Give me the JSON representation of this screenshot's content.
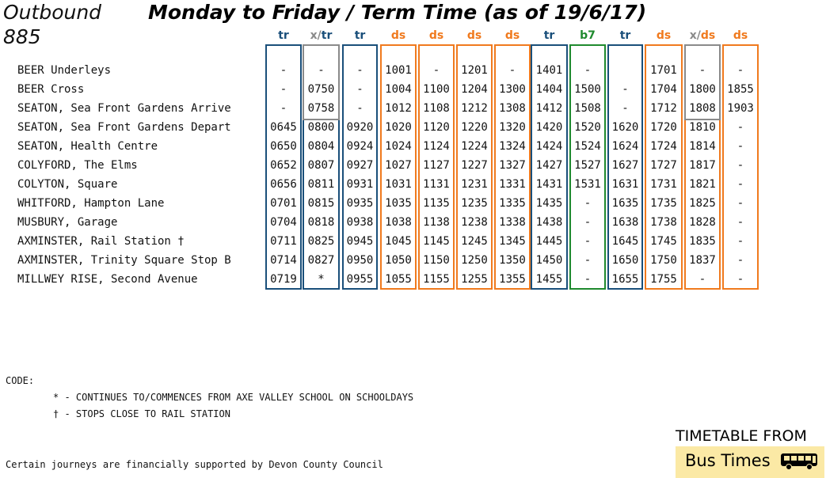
{
  "header": {
    "direction": "Outbound",
    "route": "885",
    "title": "Monday to Friday / Term Time (as of 19/6/17)"
  },
  "columns": [
    {
      "parts": [
        {
          "t": "tr",
          "c": "#1a4f7a"
        }
      ],
      "border": "#1a4f7a"
    },
    {
      "parts": [
        {
          "t": "x/",
          "c": "#8a8a8a"
        },
        {
          "t": "tr",
          "c": "#1a4f7a"
        }
      ],
      "border": "#8a8a8a",
      "split": "#1a4f7a"
    },
    {
      "parts": [
        {
          "t": "tr",
          "c": "#1a4f7a"
        }
      ],
      "border": "#1a4f7a"
    },
    {
      "parts": [
        {
          "t": "ds",
          "c": "#f07a1e"
        }
      ],
      "border": "#f07a1e"
    },
    {
      "parts": [
        {
          "t": "ds",
          "c": "#f07a1e"
        }
      ],
      "border": "#f07a1e"
    },
    {
      "parts": [
        {
          "t": "ds",
          "c": "#f07a1e"
        }
      ],
      "border": "#f07a1e"
    },
    {
      "parts": [
        {
          "t": "ds",
          "c": "#f07a1e"
        }
      ],
      "border": "#f07a1e"
    },
    {
      "parts": [
        {
          "t": "tr",
          "c": "#1a4f7a"
        }
      ],
      "border": "#1a4f7a"
    },
    {
      "parts": [
        {
          "t": "b7",
          "c": "#1f8a2e"
        }
      ],
      "border": "#1f8a2e"
    },
    {
      "parts": [
        {
          "t": "tr",
          "c": "#1a4f7a"
        }
      ],
      "border": "#1a4f7a"
    },
    {
      "parts": [
        {
          "t": "ds",
          "c": "#f07a1e"
        }
      ],
      "border": "#f07a1e"
    },
    {
      "parts": [
        {
          "t": "x/",
          "c": "#8a8a8a"
        },
        {
          "t": "ds",
          "c": "#f07a1e"
        }
      ],
      "border": "#8a8a8a",
      "split": "#f07a1e"
    },
    {
      "parts": [
        {
          "t": "ds",
          "c": "#f07a1e"
        }
      ],
      "border": "#f07a1e"
    }
  ],
  "rows": [
    {
      "stop": "BEER Underleys",
      "times": [
        "-",
        "-",
        "-",
        "1001",
        "-",
        "1201",
        "-",
        "1401",
        "-",
        "",
        "1701",
        "-",
        "-"
      ]
    },
    {
      "stop": "BEER Cross",
      "times": [
        "-",
        "0750",
        "-",
        "1004",
        "1100",
        "1204",
        "1300",
        "1404",
        "1500",
        "-",
        "1704",
        "1800",
        "1855"
      ]
    },
    {
      "stop": "SEATON, Sea Front Gardens Arrive",
      "times": [
        "-",
        "0758",
        "-",
        "1012",
        "1108",
        "1212",
        "1308",
        "1412",
        "1508",
        "-",
        "1712",
        "1808",
        "1903"
      ]
    },
    {
      "stop": "SEATON, Sea Front Gardens Depart",
      "times": [
        "0645",
        "0800",
        "0920",
        "1020",
        "1120",
        "1220",
        "1320",
        "1420",
        "1520",
        "1620",
        "1720",
        "1810",
        "-"
      ]
    },
    {
      "stop": "SEATON, Health Centre",
      "times": [
        "0650",
        "0804",
        "0924",
        "1024",
        "1124",
        "1224",
        "1324",
        "1424",
        "1524",
        "1624",
        "1724",
        "1814",
        "-"
      ]
    },
    {
      "stop": "COLYFORD, The Elms",
      "times": [
        "0652",
        "0807",
        "0927",
        "1027",
        "1127",
        "1227",
        "1327",
        "1427",
        "1527",
        "1627",
        "1727",
        "1817",
        "-"
      ]
    },
    {
      "stop": "COLYTON, Square",
      "times": [
        "0656",
        "0811",
        "0931",
        "1031",
        "1131",
        "1231",
        "1331",
        "1431",
        "1531",
        "1631",
        "1731",
        "1821",
        "-"
      ]
    },
    {
      "stop": "WHITFORD, Hampton Lane",
      "times": [
        "0701",
        "0815",
        "0935",
        "1035",
        "1135",
        "1235",
        "1335",
        "1435",
        "-",
        "1635",
        "1735",
        "1825",
        "-"
      ]
    },
    {
      "stop": "MUSBURY, Garage",
      "times": [
        "0704",
        "0818",
        "0938",
        "1038",
        "1138",
        "1238",
        "1338",
        "1438",
        "-",
        "1638",
        "1738",
        "1828",
        "-"
      ]
    },
    {
      "stop": "AXMINSTER, Rail Station †",
      "times": [
        "0711",
        "0825",
        "0945",
        "1045",
        "1145",
        "1245",
        "1345",
        "1445",
        "-",
        "1645",
        "1745",
        "1835",
        "-"
      ]
    },
    {
      "stop": "AXMINSTER, Trinity Square Stop B",
      "times": [
        "0714",
        "0827",
        "0950",
        "1050",
        "1150",
        "1250",
        "1350",
        "1450",
        "-",
        "1650",
        "1750",
        "1837",
        "-"
      ]
    },
    {
      "stop": "MILLWEY RISE, Second Avenue",
      "times": [
        "0719",
        "*",
        "0955",
        "1055",
        "1155",
        "1255",
        "1355",
        "1455",
        "-",
        "1655",
        "1755",
        "-",
        "-"
      ]
    }
  ],
  "codes": {
    "heading": "CODE:",
    "note1": "* - CONTINUES TO/COMMENCES FROM AXE VALLEY SCHOOL ON SCHOOLDAYS",
    "note2": "† - STOPS CLOSE TO RAIL STATION"
  },
  "footer_note": "Certain journeys are financially supported by Devon County Council",
  "brand": {
    "top": "TIMETABLE FROM",
    "name": "Bus Times",
    "icon": "bus-icon",
    "box_color": "#fbe9a5"
  }
}
